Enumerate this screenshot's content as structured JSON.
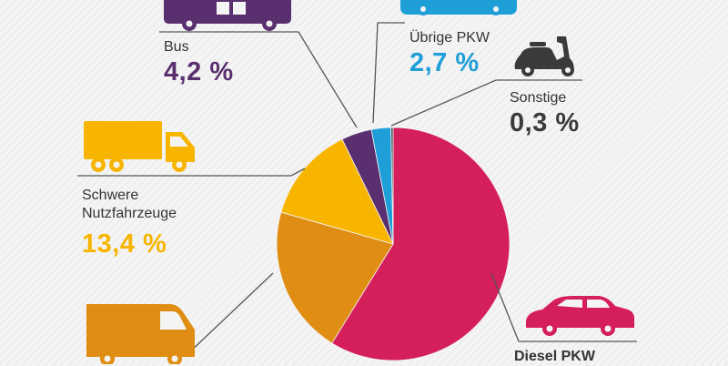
{
  "colors": {
    "diesel": "#d41f5a",
    "leichte": "#df8e13",
    "schwere": "#f7b500",
    "bus": "#5a2f6f",
    "uebrige": "#1f9fd8",
    "sonstige": "#4a4a4a",
    "leader": "#555555"
  },
  "icons": {
    "bus": "bus-icon",
    "uebrige_pkw": "car-icon",
    "sonstige": "scooter-icon",
    "schwere_nutzfahrzeuge": "truck-icon",
    "leichte_nutzfahrzeuge": "van-icon",
    "diesel_pkw": "car-icon"
  },
  "chart_data": {
    "type": "pie",
    "title": "",
    "slices": [
      {
        "key": "diesel",
        "label": "Diesel PKW",
        "value": 58.8,
        "value_label": ""
      },
      {
        "key": "leichte",
        "label": "",
        "value": 20.6,
        "value_label": ""
      },
      {
        "key": "schwere",
        "label": "Schwere Nutzfahrzeuge",
        "value": 13.4,
        "value_label": "13,4 %"
      },
      {
        "key": "bus",
        "label": "Bus",
        "value": 4.2,
        "value_label": "4,2 %"
      },
      {
        "key": "uebrige",
        "label": "Übrige PKW",
        "value": 2.7,
        "value_label": "2,7 %"
      },
      {
        "key": "sonstige",
        "label": "Sonstige",
        "value": 0.3,
        "value_label": "0,3 %"
      }
    ]
  },
  "labels": {
    "bus": {
      "name": "Bus",
      "value": "4,2 %"
    },
    "uebrige": {
      "name": "Übrige PKW",
      "value": "2,7 %"
    },
    "sonstige": {
      "name": "Sonstige",
      "value": "0,3 %"
    },
    "schwere": {
      "name_line1": "Schwere",
      "name_line2": "Nutzfahrzeuge",
      "value": "13,4 %"
    },
    "diesel": {
      "name": "Diesel PKW"
    }
  }
}
